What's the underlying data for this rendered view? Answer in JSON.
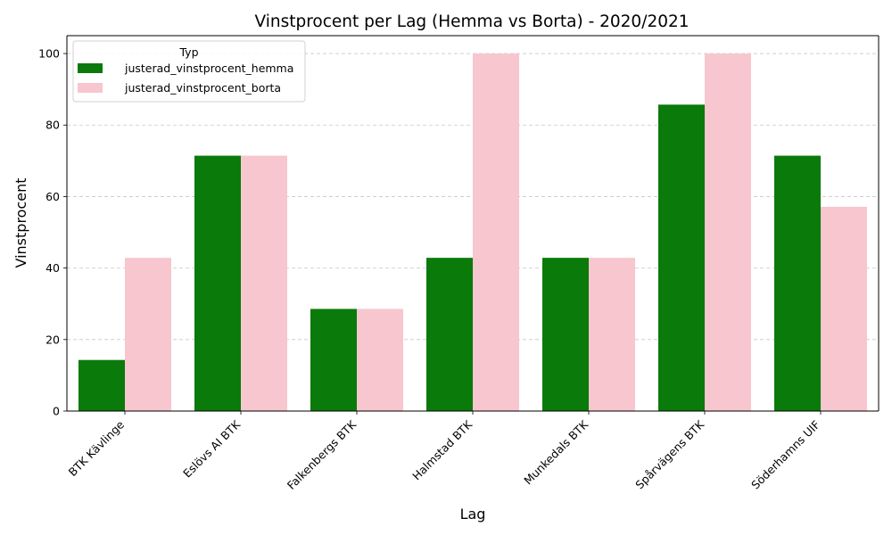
{
  "chart_data": {
    "type": "bar",
    "title": "Vinstprocent per Lag (Hemma vs Borta) - 2020/2021",
    "xlabel": "Lag",
    "ylabel": "Vinstprocent",
    "categories": [
      "BTK Kävlinge",
      "Eslövs AI BTK",
      "Falkenbergs BTK",
      "Halmstad BTK",
      "Munkedals BTK",
      "Spårvägens BTK",
      "Söderhamns UIF"
    ],
    "series": [
      {
        "name": "justerad_vinstprocent_hemma",
        "color": "#0a7a0a",
        "values": [
          14.29,
          71.43,
          28.57,
          42.86,
          42.86,
          85.71,
          71.43
        ]
      },
      {
        "name": "justerad_vinstprocent_borta",
        "color": "#f7c6ce",
        "values": [
          42.86,
          71.43,
          28.57,
          100,
          42.86,
          100,
          57.14
        ]
      }
    ],
    "ylim": [
      0,
      105
    ],
    "yticks": [
      0,
      20,
      40,
      60,
      80,
      100
    ],
    "grid": "y",
    "legend": {
      "title": "Typ",
      "placement": "top-left"
    }
  }
}
